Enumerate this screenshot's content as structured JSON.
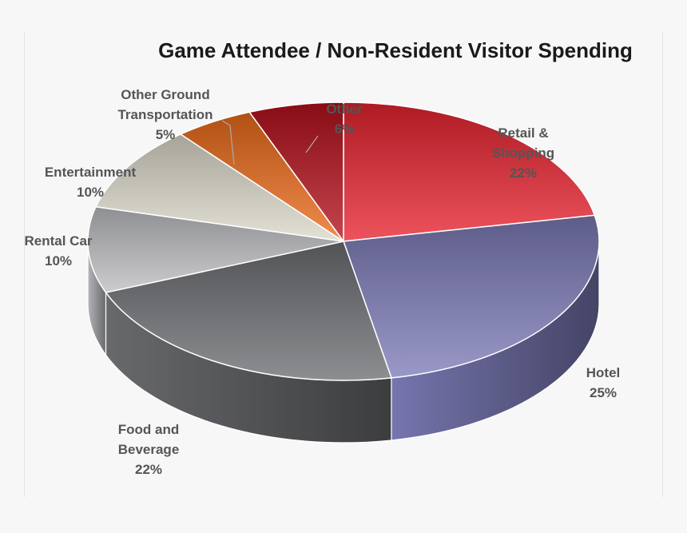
{
  "chart_data": {
    "type": "pie",
    "title": "Game Attendee / Non-Resident Visitor Spending",
    "slices": [
      {
        "label": [
          "Retail &",
          "Shopping",
          "22%"
        ],
        "name": "Retail & Shopping",
        "value": 22,
        "color": "#e8232f"
      },
      {
        "label": [
          "Hotel",
          "25%"
        ],
        "name": "Hotel",
        "value": 25,
        "color": "#7c7bb7"
      },
      {
        "label": [
          "Food and",
          "Beverage",
          "22%"
        ],
        "name": "Food and Beverage",
        "value": 22,
        "color": "#6d6e72"
      },
      {
        "label": [
          "Rental Car",
          "10%"
        ],
        "name": "Rental Car",
        "value": 10,
        "color": "#bdbec2"
      },
      {
        "label": [
          "Entertainment",
          "10%"
        ],
        "name": "Entertainment",
        "value": 10,
        "color": "#ddd9cc"
      },
      {
        "label": [
          "Other Ground",
          "Transportation",
          "5%"
        ],
        "name": "Other Ground Transportation",
        "value": 5,
        "color": "#ec6b1a"
      },
      {
        "label": [
          "Other",
          "6%"
        ],
        "name": "Other",
        "value": 6,
        "color": "#b5101c"
      }
    ]
  }
}
